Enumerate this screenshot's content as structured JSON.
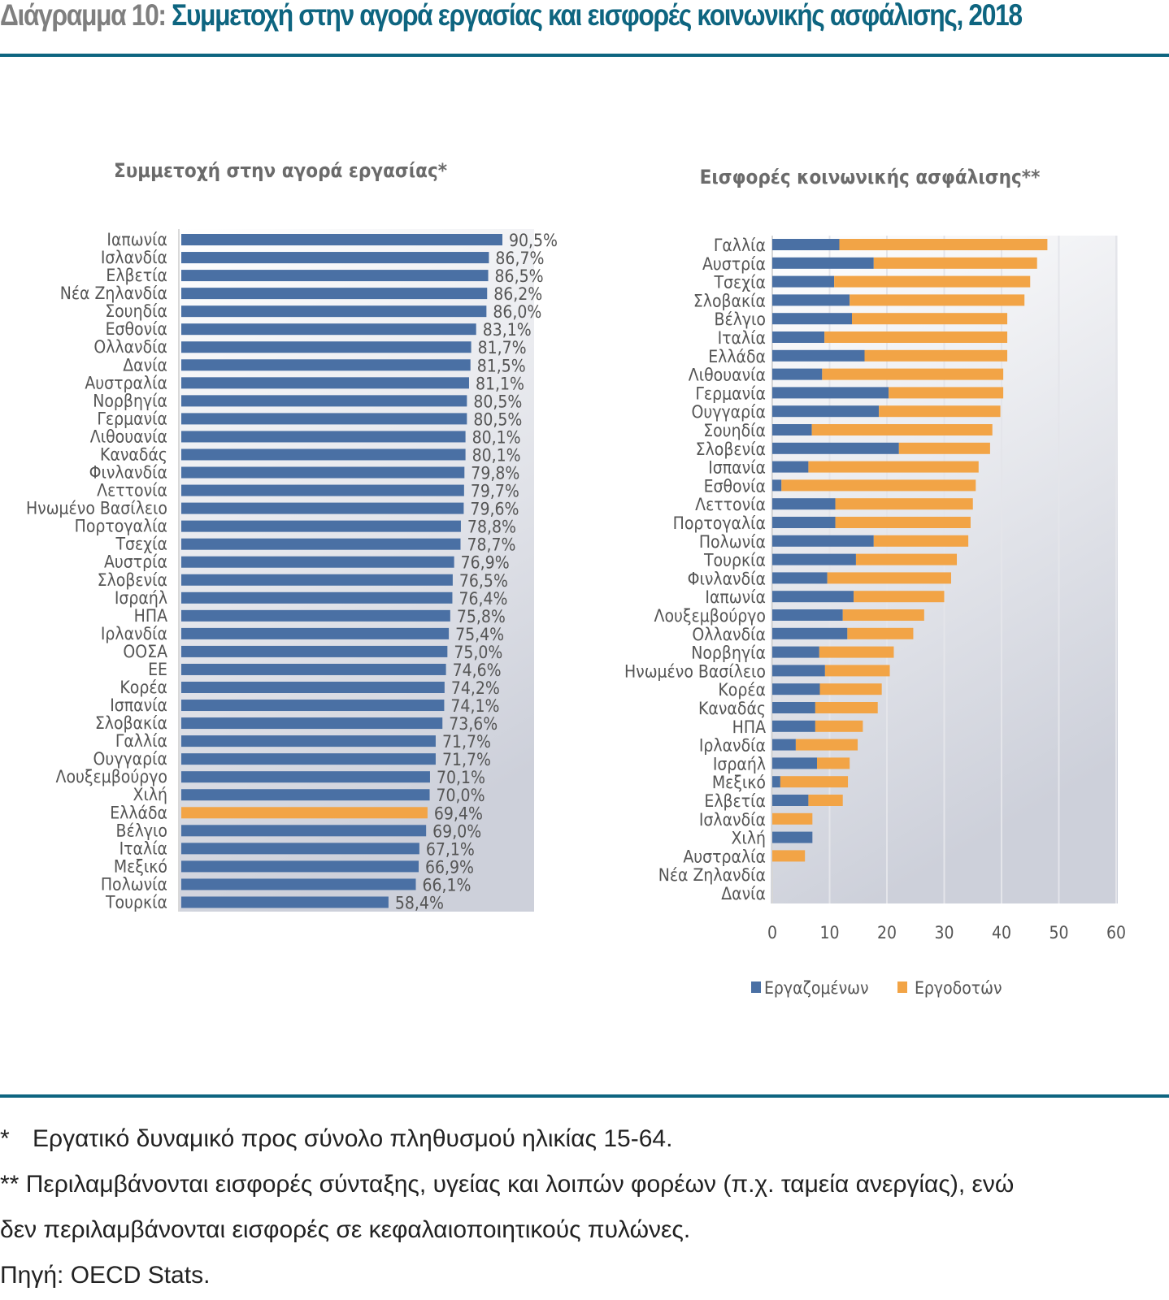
{
  "figure": {
    "number_label": "Διάγραμμα 10:",
    "title": "Συμμετοχή στην αγορά εργασίας και εισφορές κοινωνικής ασφάλισης, 2018",
    "colors": {
      "title_accent": "#0e6580",
      "blue": "#4a70a4",
      "orange": "#f2a446",
      "highlight": "#f2a446"
    }
  },
  "notes": {
    "note1_mark": "*",
    "note1": "Εργατικό δυναμικό προς σύνολο πληθυσμού ηλικίας 15-64.",
    "note2_mark": "**",
    "note2": "Περιλαμβάνονται εισφορές σύνταξης, υγείας και λοιπών φορέων (π.χ. ταμεία ανεργίας), ενώ",
    "note2_cont": "δεν περιλαμβάνονται εισφορές σε κεφαλαιοποιητικούς πυλώνες.",
    "source": "Πηγή: OECD Stats."
  },
  "chart_data": [
    {
      "type": "bar",
      "orientation": "horizontal",
      "title": "Συμμετοχή στην αγορά εργασίας*",
      "xlabel": "",
      "ylabel": "",
      "xlim": [
        0,
        100
      ],
      "value_suffix": "%",
      "highlight_category": "Ελλάδα",
      "categories": [
        "Ιαπωνία",
        "Ισλανδία",
        "Ελβετία",
        "Νέα Ζηλανδία",
        "Σουηδία",
        "Εσθονία",
        "Ολλανδία",
        "Δανία",
        "Αυστραλία",
        "Νορβηγία",
        "Γερμανία",
        "Λιθουανία",
        "Καναδάς",
        "Φινλανδία",
        "Λεττονία",
        "Ηνωμένο Βασίλειο",
        "Πορτογαλία",
        "Τσεχία",
        "Αυστρία",
        "Σλοβενία",
        "Ισραήλ",
        "ΗΠΑ",
        "Ιρλανδία",
        "ΟΟΣΑ",
        "ΕΕ",
        "Κορέα",
        "Ισπανία",
        "Σλοβακία",
        "Γαλλία",
        "Ουγγαρία",
        "Λουξεμβούργο",
        "Χιλή",
        "Ελλάδα",
        "Βέλγιο",
        "Ιταλία",
        "Μεξικό",
        "Πολωνία",
        "Τουρκία"
      ],
      "values": [
        90.5,
        86.7,
        86.5,
        86.2,
        86.0,
        83.1,
        81.7,
        81.5,
        81.1,
        80.5,
        80.5,
        80.1,
        80.1,
        79.8,
        79.7,
        79.6,
        78.8,
        78.7,
        76.9,
        76.5,
        76.4,
        75.8,
        75.4,
        75.0,
        74.6,
        74.2,
        74.1,
        73.6,
        71.7,
        71.7,
        70.1,
        70.0,
        69.4,
        69.0,
        67.1,
        66.9,
        66.1,
        58.4
      ],
      "labels": [
        "90,5%",
        "86,7%",
        "86,5%",
        "86,2%",
        "86,0%",
        "83,1%",
        "81,7%",
        "81,5%",
        "81,1%",
        "80,5%",
        "80,5%",
        "80,1%",
        "80,1%",
        "79,8%",
        "79,7%",
        "79,6%",
        "78,8%",
        "78,7%",
        "76,9%",
        "76,5%",
        "76,4%",
        "75,8%",
        "75,4%",
        "75,0%",
        "74,6%",
        "74,2%",
        "74,1%",
        "73,6%",
        "71,7%",
        "71,7%",
        "70,1%",
        "70,0%",
        "69,4%",
        "69,0%",
        "67,1%",
        "66,9%",
        "66,1%",
        "58,4%"
      ],
      "grid": false
    },
    {
      "type": "bar",
      "orientation": "horizontal",
      "stacked": true,
      "title": "Εισφορές κοινωνικής ασφάλισης**",
      "xlabel": "",
      "ylabel": "",
      "xlim": [
        0,
        60
      ],
      "xticks": [
        0,
        10,
        20,
        30,
        40,
        50,
        60
      ],
      "grid": true,
      "legend": "bottom",
      "categories": [
        "Γαλλία",
        "Αυστρία",
        "Τσεχία",
        "Σλοβακία",
        "Βέλγιο",
        "Ιταλία",
        "Ελλάδα",
        "Λιθουανία",
        "Γερμανία",
        "Ουγγαρία",
        "Σουηδία",
        "Σλοβενία",
        "Ισπανία",
        "Εσθονία",
        "Λεττονία",
        "Πορτογαλία",
        "Πολωνία",
        "Τουρκία",
        "Φινλανδία",
        "Ιαπωνία",
        "Λουξεμβούργο",
        "Ολλανδία",
        "Νορβηγία",
        "Ηνωμένο Βασίλειο",
        "Κορέα",
        "Καναδάς",
        "ΗΠΑ",
        "Ιρλανδία",
        "Ισραήλ",
        "Μεξικό",
        "Ελβετία",
        "Ισλανδία",
        "Χιλή",
        "Αυστραλία",
        "Νέα Ζηλανδία",
        "Δανία"
      ],
      "series": [
        {
          "name": "Εργαζομένων",
          "color": "#4a70a4",
          "values": [
            11.7,
            17.7,
            10.8,
            13.5,
            13.9,
            9.1,
            16.1,
            8.7,
            20.3,
            18.6,
            6.9,
            22.1,
            6.3,
            1.6,
            11.0,
            11.0,
            17.7,
            14.6,
            9.6,
            14.2,
            12.3,
            13.1,
            8.2,
            9.2,
            8.3,
            7.5,
            7.5,
            4.1,
            7.8,
            1.4,
            6.3,
            0.0,
            7.0,
            0.0,
            0.0,
            0.0
          ]
        },
        {
          "name": "Εργοδοτών",
          "color": "#f2a446",
          "values": [
            36.3,
            28.5,
            34.2,
            30.5,
            27.1,
            31.9,
            24.9,
            31.6,
            20.0,
            21.2,
            31.5,
            15.9,
            29.7,
            33.9,
            24.0,
            23.6,
            16.5,
            17.6,
            21.6,
            15.8,
            14.2,
            11.5,
            13.0,
            11.3,
            10.8,
            10.9,
            8.3,
            10.8,
            5.7,
            11.8,
            6.0,
            7.0,
            0.0,
            5.7,
            0.0,
            0.0
          ]
        }
      ]
    }
  ]
}
